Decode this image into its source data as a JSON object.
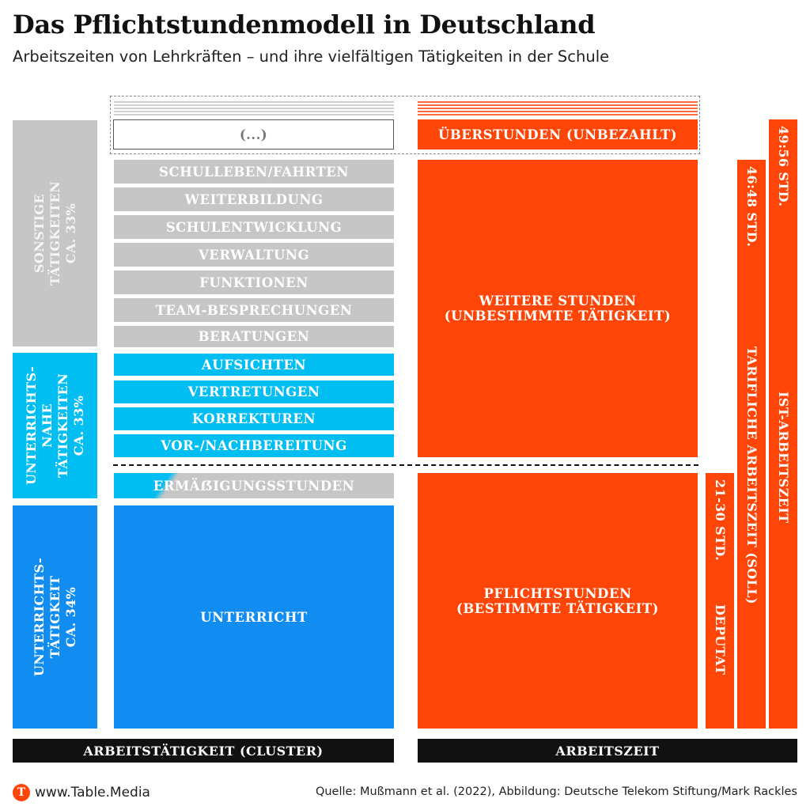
{
  "title": "Das Pflichtstundenmodell in Deutschland",
  "subtitle": "Arbeitszeiten von Lehrkräften – und ihre vielfältigen Tätigkeiten in der Schule",
  "colors": {
    "gray": "#c6c6c6",
    "cyan": "#00bdf2",
    "blue": "#118cf0",
    "orange": "#ff4507",
    "black": "#111111"
  },
  "categories": {
    "sonstige": {
      "line1": "SONSTIGE",
      "line2": "TÄTIGKEITEN",
      "line3": "CA. 33%"
    },
    "unterrichtsnahe": {
      "line1": "UNTERRICHTS-",
      "line2": "NAHE",
      "line3": "TÄTIGKEITEN",
      "line4": "CA. 33%"
    },
    "unterricht": {
      "line1": "UNTERRICHTS-",
      "line2": "TÄTIGKEIT",
      "line3": "CA. 34%"
    }
  },
  "activities": {
    "placeholder": "(...)",
    "gray": [
      "SCHULLEBEN/FAHRTEN",
      "WEITERBILDUNG",
      "SCHULENTWICKLUNG",
      "VERWALTUNG",
      "FUNKTIONEN",
      "TEAM-BESPRECHUNGEN",
      "BERATUNGEN"
    ],
    "cyan": [
      "AUFSICHTEN",
      "VERTRETUNGEN",
      "KORREKTUREN",
      "VOR-/NACHBEREITUNG"
    ],
    "reduction": "ERMÄẞIGUNGSSTUNDEN",
    "teaching": "UNTERRICHT"
  },
  "worktime": {
    "overtime": "ÜBERSTUNDEN (UNBEZAHLT)",
    "further_line1": "WEITERE STUNDEN",
    "further_line2": "(UNBESTIMMTE TÄTIGKEIT)",
    "mandatory_line1": "PFLICHTSTUNDEN",
    "mandatory_line2": "(BESTIMMTE TÄTIGKEIT)"
  },
  "bars": {
    "deputat_hours": "21-30 STD.",
    "deputat_label": "DEPUTAT",
    "soll_hours": "46:48 STD.",
    "soll_label": "TARIFLICHE ARBEITSZEIT (SOLL)",
    "ist_hours": "49:56 STD.",
    "ist_label": "IST-ARBEITSZEIT"
  },
  "footer": {
    "left_label": "ARBEITSTÄTIGKEIT (CLUSTER)",
    "right_label": "ARBEITSZEIT"
  },
  "logo": {
    "glyph": "T",
    "text": "www.Table.Media"
  },
  "source": "Quelle: Mußmann et al. (2022), Abbildung: Deutsche Telekom Stiftung/Mark Rackles"
}
